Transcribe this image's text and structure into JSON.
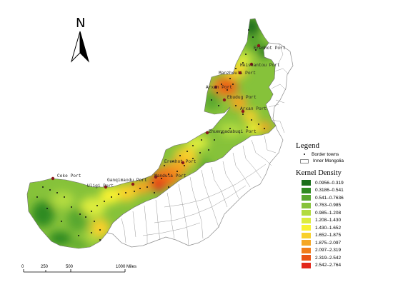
{
  "map": {
    "north_label": "N",
    "ports": [
      {
        "name": "Erenhot Port"
      },
      {
        "name": "Heishantou Port"
      },
      {
        "name": "Manzhouli Port"
      },
      {
        "name": "Arxan Port"
      },
      {
        "name": "Ebudug Port"
      },
      {
        "name": "Arxan Port"
      },
      {
        "name": "Zhuengadabuqi Port"
      },
      {
        "name": "Erenhot Port"
      },
      {
        "name": "Ganqimaodu Port"
      },
      {
        "name": "Mandula Port"
      },
      {
        "name": "Ceke Port"
      },
      {
        "name": "Uligi Port"
      }
    ]
  },
  "scale_bar": {
    "labels": [
      "0",
      "250",
      "500",
      "1000 Miles"
    ]
  },
  "legend": {
    "title": "Legend",
    "items": [
      {
        "symbol": "dot",
        "label": "Border towns"
      },
      {
        "symbol": "box",
        "label": "Inner Mongolia"
      }
    ]
  },
  "kernel_density": {
    "title": "Kernel Density",
    "classes": [
      {
        "label": "0.0956–0.319",
        "color": "#1a6e1a"
      },
      {
        "label": "0.3186–0.541",
        "color": "#2f8a22"
      },
      {
        "label": "0.541–0.7636",
        "color": "#58a72f"
      },
      {
        "label": "0.763–0.985",
        "color": "#86c23a"
      },
      {
        "label": "0.985–1.208",
        "color": "#b2db3f"
      },
      {
        "label": "1.208–1.430",
        "color": "#dcec3e"
      },
      {
        "label": "1.430–1.652",
        "color": "#f8f232"
      },
      {
        "label": "1.652–1.875",
        "color": "#f8d02c"
      },
      {
        "label": "1.875–2.097",
        "color": "#f5a623"
      },
      {
        "label": "2.097–2.319",
        "color": "#f07d1a"
      },
      {
        "label": "2.319–2.542",
        "color": "#ea5414"
      },
      {
        "label": "2.542–2.764",
        "color": "#e3261a"
      }
    ]
  }
}
